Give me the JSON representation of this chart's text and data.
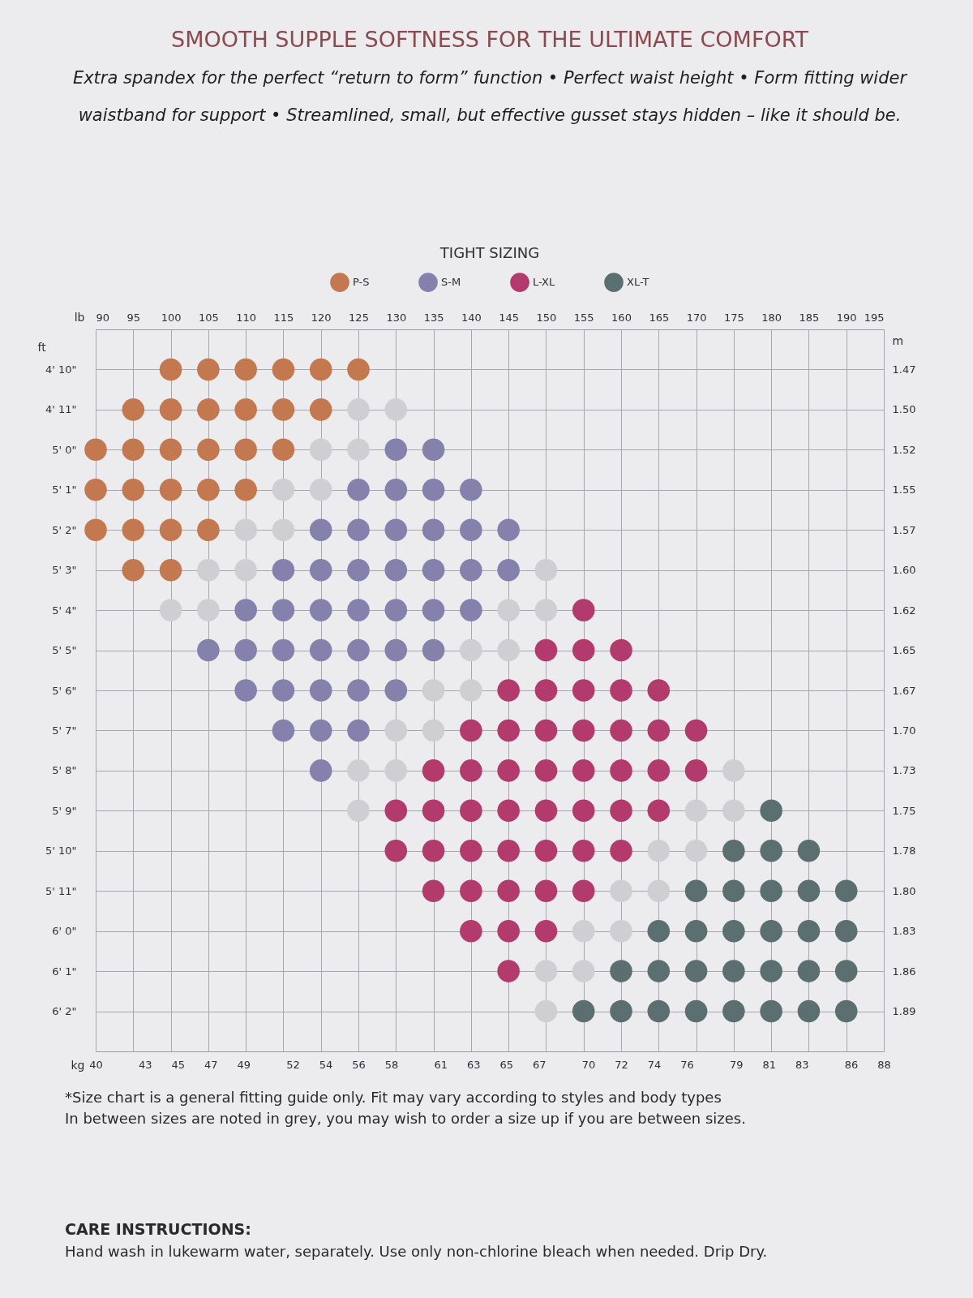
{
  "chart_data": {
    "type": "scatter",
    "orientation": "horizontal",
    "title": "SMOOTH SUPPLE SOFTNESS FOR THE ULTIMATE COMFORT",
    "subtitle": "Extra spandex for the perfect “return to form” function • Perfect waist height • Form fitting wider waistband for support • Streamlined, small, but effective gusset stays hidden – like it should be.",
    "xlabel": "lb",
    "x2label": "kg",
    "ylabel": "ft",
    "y2label": "m",
    "legend_title": "TIGHT SIZING",
    "legend": "top",
    "grid": true,
    "marker": "circle",
    "categories": [
      "4' 10\"",
      "4' 11\"",
      "5' 0\"",
      "5' 1\"",
      "5' 2\"",
      "5' 3\"",
      "5' 4\"",
      "5' 5\"",
      "5' 6\"",
      "5' 7\"",
      "5' 8\"",
      "5' 9\"",
      "5' 10\"",
      "5' 11\"",
      "6' 0\"",
      "6' 1\"",
      "6' 2\""
    ],
    "y2_categories": [
      "1.47",
      "1.50",
      "1.52",
      "1.55",
      "1.57",
      "1.60",
      "1.62",
      "1.65",
      "1.67",
      "1.70",
      "1.73",
      "1.75",
      "1.78",
      "1.80",
      "1.83",
      "1.86",
      "1.89"
    ],
    "xlim": [
      90,
      195
    ],
    "xticks": [
      90,
      95,
      100,
      105,
      110,
      115,
      120,
      125,
      130,
      135,
      140,
      145,
      150,
      155,
      160,
      165,
      170,
      175,
      180,
      185,
      190,
      195
    ],
    "x2lim": [
      40,
      88
    ],
    "x2ticks": [
      40,
      43,
      45,
      47,
      49,
      52,
      54,
      56,
      58,
      61,
      63,
      65,
      67,
      70,
      72,
      74,
      76,
      79,
      81,
      83,
      86,
      88
    ],
    "series": [
      {
        "name": "P-S",
        "color": "#c4784f",
        "x": [
          "4' 10\"",
          "4' 10\"",
          "4' 10\"",
          "4' 10\"",
          "4' 10\"",
          "4' 10\"",
          "4' 11\"",
          "4' 11\"",
          "4' 11\"",
          "4' 11\"",
          "4' 11\"",
          "4' 11\"",
          "5' 0\"",
          "5' 0\"",
          "5' 0\"",
          "5' 0\"",
          "5' 0\"",
          "5' 0\"",
          "5' 1\"",
          "5' 1\"",
          "5' 1\"",
          "5' 1\"",
          "5' 1\"",
          "5' 2\"",
          "5' 2\"",
          "5' 2\"",
          "5' 2\"",
          "5' 3\"",
          "5' 3\""
        ],
        "values": [
          100,
          105,
          110,
          115,
          120,
          125,
          95,
          100,
          105,
          110,
          115,
          120,
          90,
          95,
          100,
          105,
          110,
          115,
          90,
          95,
          100,
          105,
          110,
          90,
          95,
          100,
          105,
          95,
          100
        ]
      },
      {
        "name": "S-M",
        "color": "#8581ad",
        "x": [
          "5' 0\"",
          "5' 0\"",
          "5' 1\"",
          "5' 1\"",
          "5' 1\"",
          "5' 1\"",
          "5' 2\"",
          "5' 2\"",
          "5' 2\"",
          "5' 2\"",
          "5' 2\"",
          "5' 2\"",
          "5' 3\"",
          "5' 3\"",
          "5' 3\"",
          "5' 3\"",
          "5' 3\"",
          "5' 3\"",
          "5' 3\"",
          "5' 4\"",
          "5' 4\"",
          "5' 4\"",
          "5' 4\"",
          "5' 4\"",
          "5' 4\"",
          "5' 4\"",
          "5' 5\"",
          "5' 5\"",
          "5' 5\"",
          "5' 5\"",
          "5' 5\"",
          "5' 5\"",
          "5' 5\"",
          "5' 6\"",
          "5' 6\"",
          "5' 6\"",
          "5' 6\"",
          "5' 6\"",
          "5' 7\"",
          "5' 7\"",
          "5' 7\"",
          "5' 8\""
        ],
        "values": [
          130,
          135,
          125,
          130,
          135,
          140,
          120,
          125,
          130,
          135,
          140,
          145,
          115,
          120,
          125,
          130,
          135,
          140,
          145,
          110,
          115,
          120,
          125,
          130,
          135,
          140,
          105,
          110,
          115,
          120,
          125,
          130,
          135,
          110,
          115,
          120,
          125,
          130,
          115,
          120,
          125,
          120
        ]
      },
      {
        "name": "L-XL",
        "color": "#b23a6d",
        "x": [
          "5' 4\"",
          "5' 5\"",
          "5' 5\"",
          "5' 5\"",
          "5' 6\"",
          "5' 6\"",
          "5' 6\"",
          "5' 6\"",
          "5' 6\"",
          "5' 7\"",
          "5' 7\"",
          "5' 7\"",
          "5' 7\"",
          "5' 7\"",
          "5' 7\"",
          "5' 7\"",
          "5' 8\"",
          "5' 8\"",
          "5' 8\"",
          "5' 8\"",
          "5' 8\"",
          "5' 8\"",
          "5' 8\"",
          "5' 8\"",
          "5' 9\"",
          "5' 9\"",
          "5' 9\"",
          "5' 9\"",
          "5' 9\"",
          "5' 9\"",
          "5' 9\"",
          "5' 9\"",
          "5' 10\"",
          "5' 10\"",
          "5' 10\"",
          "5' 10\"",
          "5' 10\"",
          "5' 10\"",
          "5' 10\"",
          "5' 11\"",
          "5' 11\"",
          "5' 11\"",
          "5' 11\"",
          "5' 11\"",
          "6' 0\"",
          "6' 0\"",
          "6' 0\"",
          "6' 1\""
        ],
        "values": [
          155,
          150,
          155,
          160,
          145,
          150,
          155,
          160,
          165,
          140,
          145,
          150,
          155,
          160,
          165,
          170,
          135,
          140,
          145,
          150,
          155,
          160,
          165,
          170,
          130,
          135,
          140,
          145,
          150,
          155,
          160,
          165,
          130,
          135,
          140,
          145,
          150,
          155,
          160,
          135,
          140,
          145,
          150,
          155,
          140,
          145,
          150,
          145
        ]
      },
      {
        "name": "XL-T",
        "color": "#5c6f70",
        "x": [
          "5' 9\"",
          "5' 10\"",
          "5' 10\"",
          "5' 10\"",
          "5' 11\"",
          "5' 11\"",
          "5' 11\"",
          "5' 11\"",
          "5' 11\"",
          "6' 0\"",
          "6' 0\"",
          "6' 0\"",
          "6' 0\"",
          "6' 0\"",
          "6' 0\"",
          "6' 1\"",
          "6' 1\"",
          "6' 1\"",
          "6' 1\"",
          "6' 1\"",
          "6' 1\"",
          "6' 1\"",
          "6' 2\"",
          "6' 2\"",
          "6' 2\"",
          "6' 2\"",
          "6' 2\"",
          "6' 2\"",
          "6' 2\"",
          "6' 2\""
        ],
        "values": [
          180,
          175,
          180,
          185,
          170,
          175,
          180,
          185,
          190,
          165,
          170,
          175,
          180,
          185,
          190,
          160,
          165,
          170,
          175,
          180,
          185,
          190,
          155,
          160,
          165,
          170,
          175,
          180,
          185,
          190
        ]
      },
      {
        "color": "#cfcfd3",
        "x": [
          "4' 11\"",
          "4' 11\"",
          "5' 0\"",
          "5' 0\"",
          "5' 1\"",
          "5' 1\"",
          "5' 2\"",
          "5' 2\"",
          "5' 3\"",
          "5' 3\"",
          "5' 3\"",
          "5' 4\"",
          "5' 4\"",
          "5' 4\"",
          "5' 4\"",
          "5' 5\"",
          "5' 5\"",
          "5' 6\"",
          "5' 6\"",
          "5' 7\"",
          "5' 7\"",
          "5' 8\"",
          "5' 8\"",
          "5' 8\"",
          "5' 9\"",
          "5' 9\"",
          "5' 9\"",
          "5' 10\"",
          "5' 10\"",
          "5' 11\"",
          "5' 11\"",
          "6' 0\"",
          "6' 0\"",
          "6' 1\"",
          "6' 1\"",
          "6' 2\""
        ],
        "values": [
          125,
          130,
          120,
          125,
          115,
          120,
          110,
          115,
          105,
          110,
          150,
          100,
          105,
          145,
          150,
          140,
          145,
          135,
          140,
          130,
          135,
          125,
          130,
          175,
          125,
          170,
          175,
          165,
          170,
          160,
          165,
          155,
          160,
          150,
          155,
          150
        ]
      }
    ],
    "annotations": [
      "*Size chart is a general fitting guide only. Fit may vary according to styles and body types",
      "In between sizes are noted in grey, you may wish to order a size up if you are between sizes.",
      "CARE INSTRUCTIONS:",
      "Hand wash in lukewarm water, separately. Use only non-chlorine bleach when needed. Drip Dry."
    ]
  }
}
